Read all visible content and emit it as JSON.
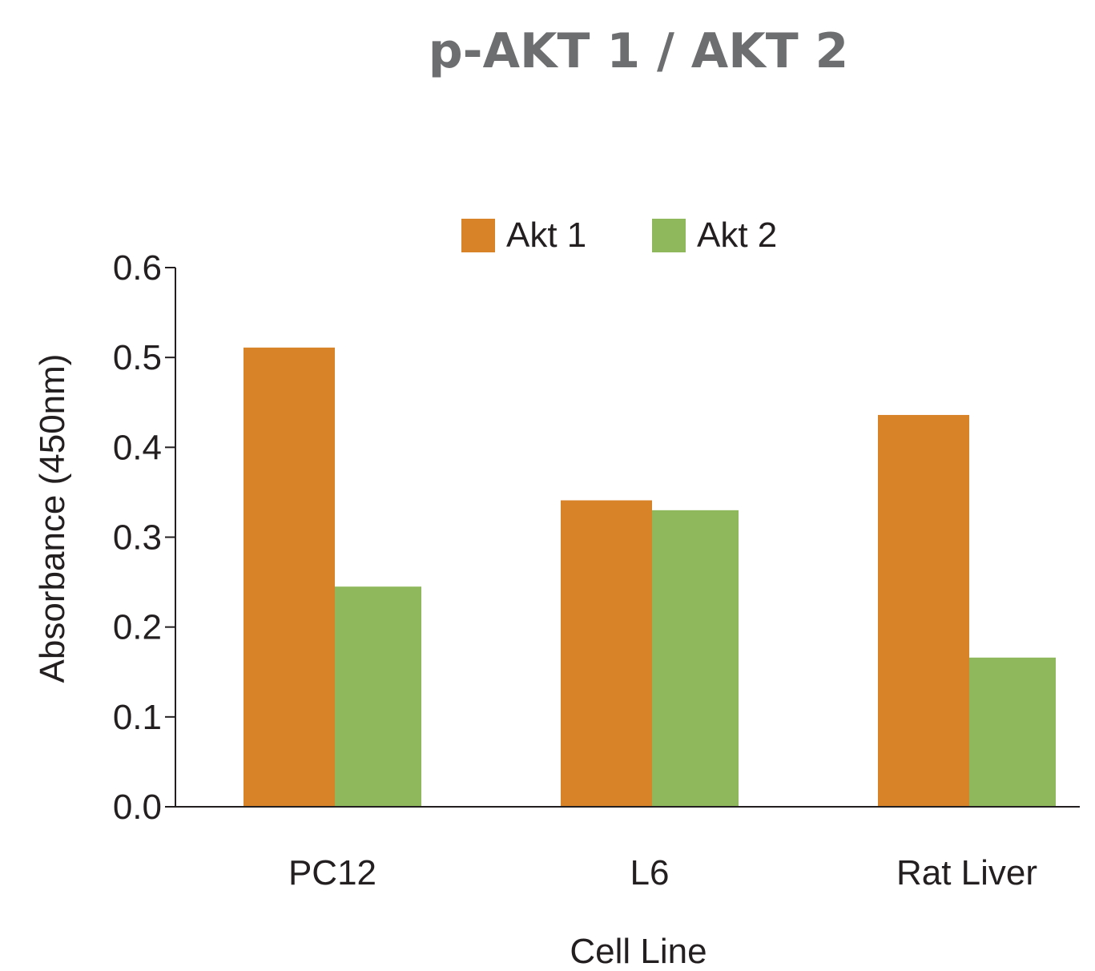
{
  "chart_data": {
    "type": "bar",
    "title": "p-AKT 1 / AKT 2",
    "xlabel": "Cell Line",
    "ylabel": "Absorbance (450nm)",
    "categories": [
      "PC12",
      "L6",
      "Rat Liver"
    ],
    "series": [
      {
        "name": "Akt 1",
        "color": "#d98328",
        "values": [
          0.511,
          0.341,
          0.436
        ]
      },
      {
        "name": "Akt 2",
        "color": "#8eb85b",
        "values": [
          0.245,
          0.33,
          0.166
        ]
      }
    ],
    "ylim": [
      0,
      0.6
    ],
    "yticks": [
      "0.0",
      "0.1",
      "0.2",
      "0.3",
      "0.4",
      "0.5",
      "0.6"
    ],
    "grid": false,
    "legend_position": "top-center"
  }
}
